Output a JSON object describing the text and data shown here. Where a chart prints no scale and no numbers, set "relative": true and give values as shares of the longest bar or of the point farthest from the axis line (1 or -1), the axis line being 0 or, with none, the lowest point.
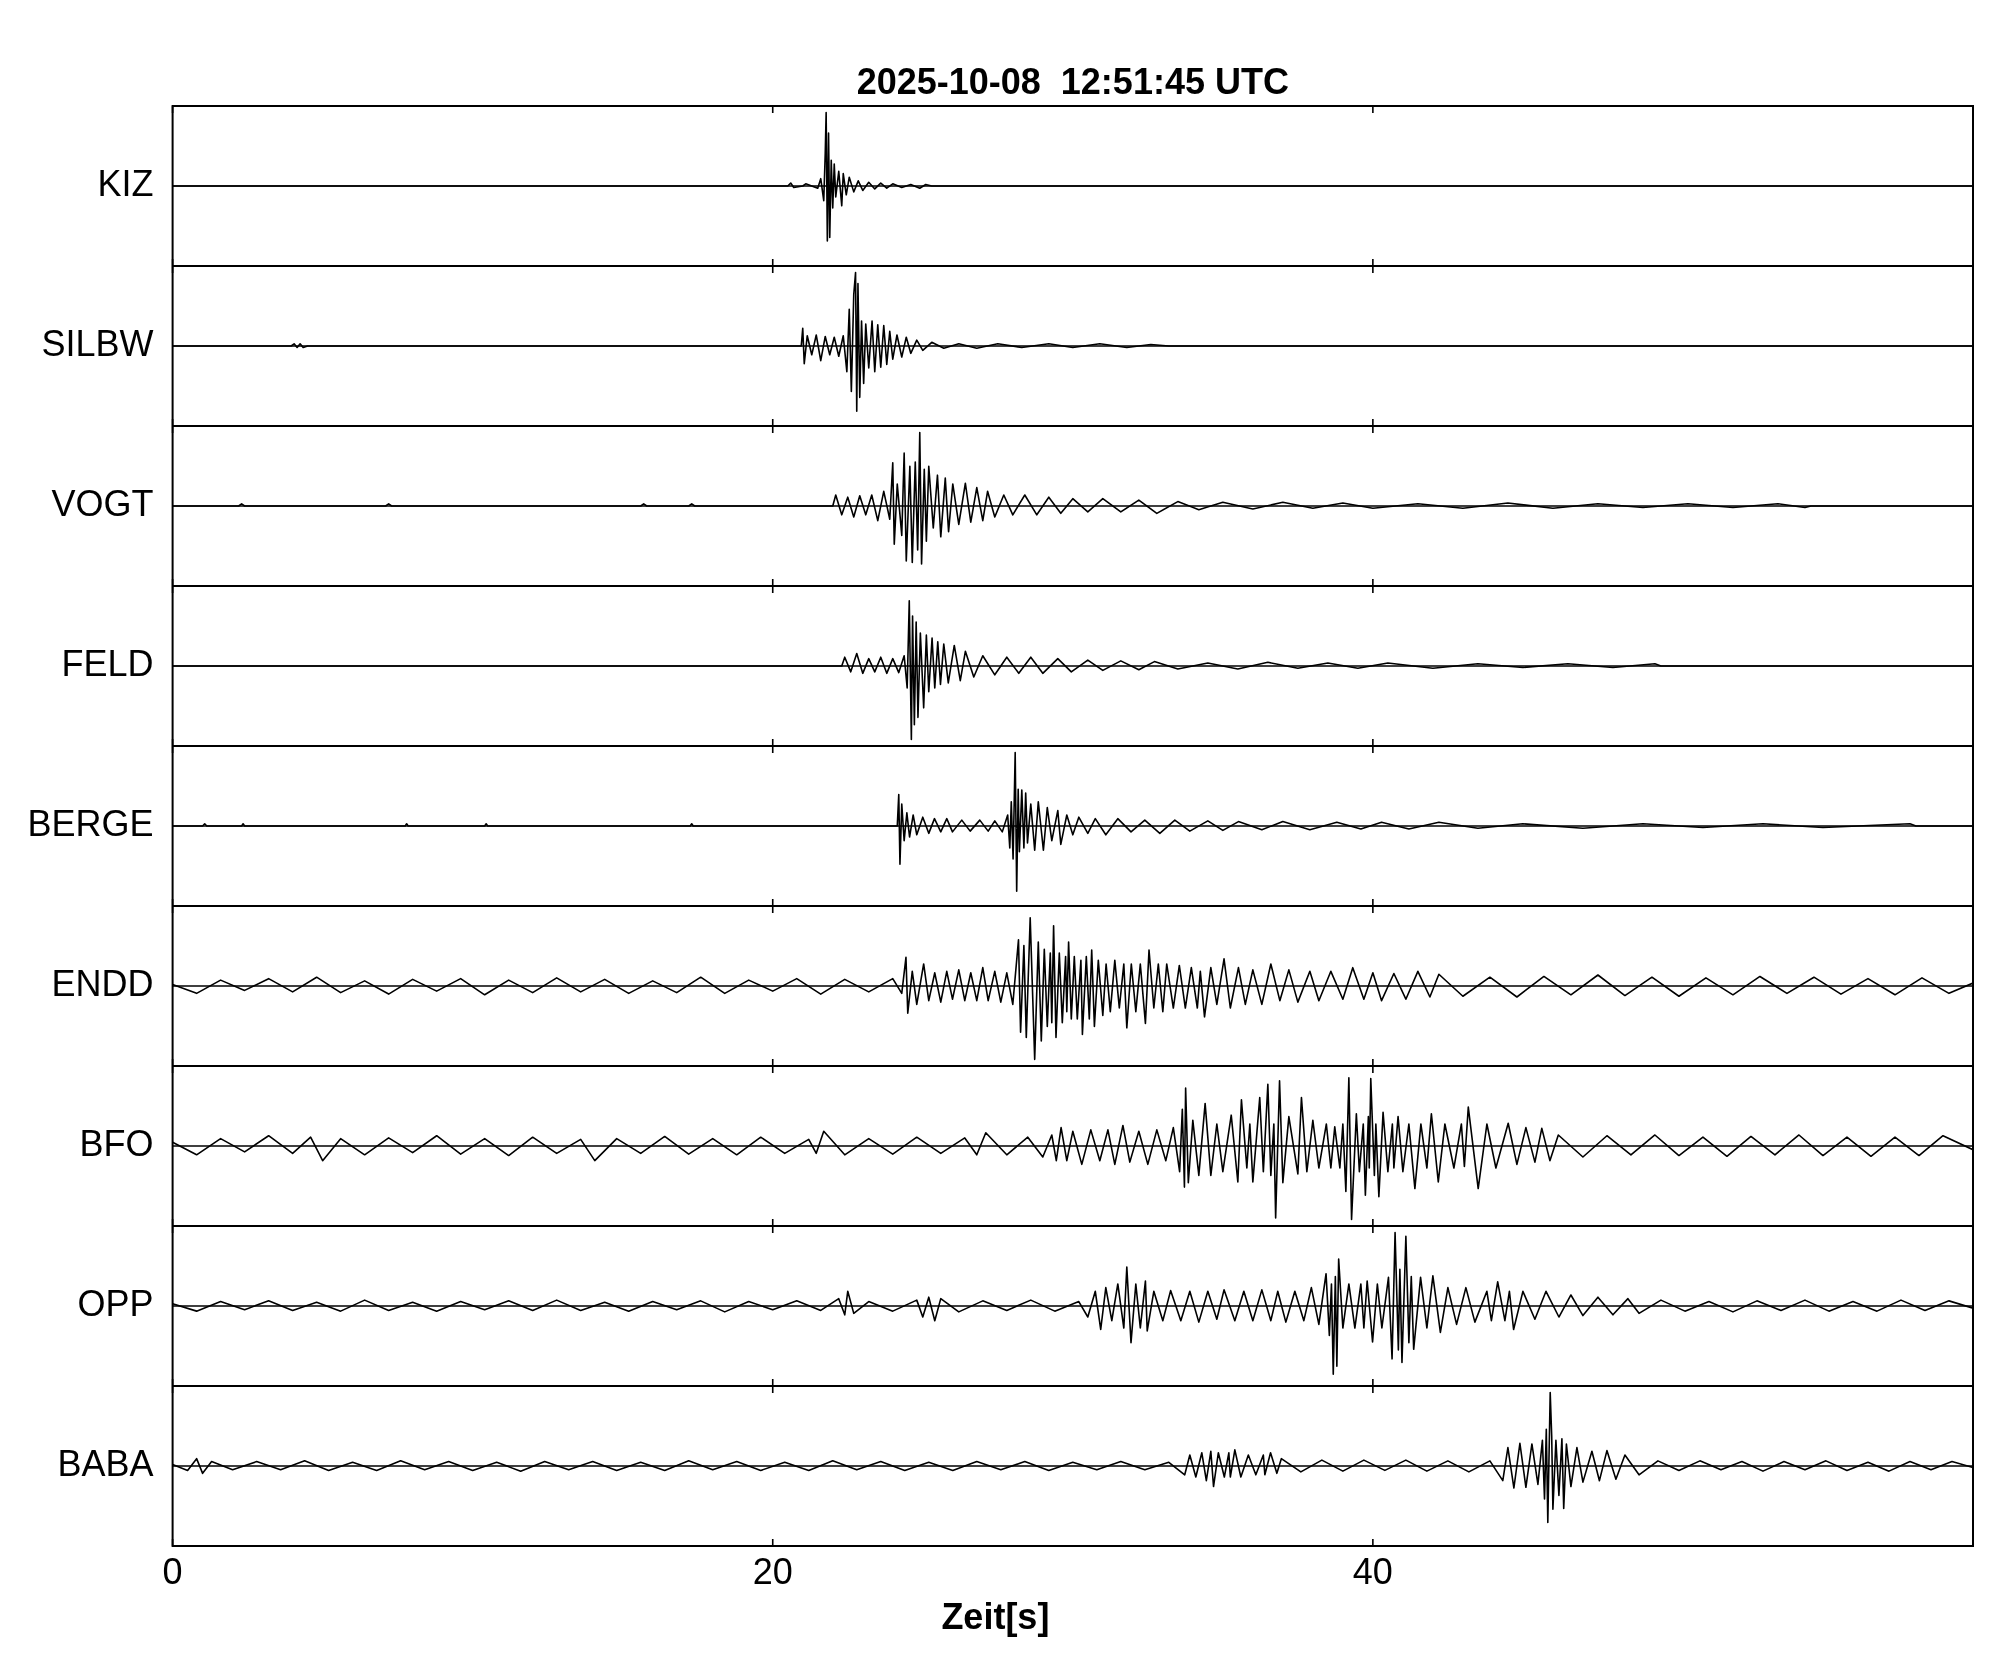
{
  "chart_data": [
    {
      "type": "line",
      "title": "2025-10-08  12:51:45 UTC",
      "ylabel": "KIZ",
      "relative": true,
      "color": "#000000",
      "xlim": [
        0,
        60
      ],
      "xticks": [
        0,
        20,
        40
      ],
      "tick_labels": false,
      "x": [
        0,
        20.5,
        20.6,
        20.7,
        21.0,
        21.1,
        21.5,
        21.6,
        21.7,
        21.75,
        21.78,
        21.82,
        21.86,
        21.9,
        21.95,
        22.0,
        22.05,
        22.1,
        22.2,
        22.3,
        22.35,
        22.45,
        22.55,
        22.7,
        22.85,
        23.0,
        23.2,
        23.4,
        23.6,
        23.8,
        24.0,
        24.3,
        24.6,
        24.9,
        25.1,
        25.3,
        60
      ],
      "values": [
        0,
        0,
        0.04,
        -0.02,
        0,
        0.03,
        -0.03,
        0.1,
        -0.2,
        0.45,
        1.0,
        -0.75,
        0.72,
        -0.7,
        0.35,
        -0.3,
        0.3,
        -0.15,
        0.2,
        -0.27,
        0.17,
        -0.12,
        0.12,
        -0.08,
        0.07,
        -0.06,
        0.05,
        -0.04,
        0.04,
        -0.03,
        0.03,
        -0.02,
        0.02,
        -0.03,
        0.02,
        0,
        0
      ]
    },
    {
      "type": "line",
      "ylabel": "SILBW",
      "relative": true,
      "color": "#000000",
      "xlim": [
        0,
        60
      ],
      "xticks": [
        0,
        20,
        40
      ],
      "tick_labels": false,
      "x": [
        0,
        3.95,
        4.05,
        4.15,
        4.25,
        4.35,
        4.5,
        20.95,
        21.0,
        21.05,
        21.15,
        21.3,
        21.45,
        21.6,
        21.75,
        21.9,
        22.05,
        22.2,
        22.35,
        22.47,
        22.55,
        22.62,
        22.7,
        22.76,
        22.8,
        22.84,
        22.9,
        22.96,
        23.03,
        23.1,
        23.2,
        23.31,
        23.4,
        23.5,
        23.6,
        23.7,
        23.8,
        23.9,
        24.0,
        24.14,
        24.3,
        24.45,
        24.6,
        24.8,
        25.0,
        25.3,
        25.7,
        26.2,
        26.8,
        27.5,
        28.3,
        29.2,
        30.0,
        30.9,
        31.8,
        32.6,
        33.2,
        60
      ],
      "values": [
        0,
        0,
        0.03,
        -0.02,
        0.03,
        -0.02,
        0,
        0,
        0.24,
        -0.24,
        0.14,
        -0.12,
        0.15,
        -0.2,
        0.13,
        -0.12,
        0.12,
        -0.14,
        0.14,
        -0.35,
        0.5,
        -0.62,
        0.7,
        1.0,
        -0.89,
        0.85,
        -0.7,
        0.34,
        -0.51,
        0.3,
        -0.3,
        0.34,
        -0.35,
        0.29,
        -0.29,
        0.28,
        -0.25,
        0.2,
        -0.18,
        0.15,
        -0.15,
        0.12,
        -0.1,
        0.08,
        -0.06,
        0.05,
        -0.03,
        0.03,
        -0.03,
        0.03,
        -0.02,
        0.03,
        -0.02,
        0.03,
        -0.02,
        0.02,
        0,
        0
      ]
    },
    {
      "type": "line",
      "ylabel": "VOGT",
      "relative": true,
      "color": "#000000",
      "xlim": [
        0,
        60
      ],
      "xticks": [
        0,
        20,
        40
      ],
      "tick_labels": false,
      "x": [
        0,
        2.2,
        2.3,
        2.4,
        7.1,
        7.2,
        7.3,
        15.6,
        15.7,
        15.8,
        17.2,
        17.3,
        17.4,
        22.0,
        22.1,
        22.3,
        22.5,
        22.7,
        22.9,
        23.1,
        23.3,
        23.5,
        23.7,
        23.9,
        24.0,
        24.05,
        24.15,
        24.3,
        24.38,
        24.45,
        24.57,
        24.65,
        24.75,
        24.83,
        24.9,
        24.96,
        25.05,
        25.12,
        25.2,
        25.35,
        25.49,
        25.6,
        25.75,
        25.86,
        26.0,
        26.2,
        26.42,
        26.6,
        26.8,
        27.0,
        27.16,
        27.4,
        27.7,
        28.0,
        28.4,
        28.8,
        29.2,
        29.6,
        30.0,
        30.5,
        31.0,
        31.6,
        32.2,
        32.8,
        33.5,
        34.2,
        35.0,
        36.0,
        37.0,
        38.0,
        39.0,
        40.0,
        41.5,
        43.0,
        44.5,
        46.0,
        47.5,
        49.0,
        50.5,
        52.0,
        53.5,
        54.4,
        54.6,
        60
      ],
      "values": [
        0,
        0,
        0.03,
        0,
        0,
        0.03,
        0,
        0,
        0.03,
        0,
        0,
        0.03,
        0,
        0,
        0.15,
        -0.12,
        0.12,
        -0.15,
        0.14,
        -0.12,
        0.15,
        -0.2,
        0.2,
        -0.18,
        0.59,
        -0.52,
        0.3,
        -0.4,
        0.72,
        -0.75,
        0.54,
        -0.77,
        0.6,
        -0.6,
        1.0,
        -0.79,
        0.5,
        -0.48,
        0.54,
        -0.3,
        0.42,
        -0.42,
        0.38,
        -0.35,
        0.3,
        -0.25,
        0.31,
        -0.22,
        0.25,
        -0.2,
        0.2,
        -0.15,
        0.15,
        -0.12,
        0.15,
        -0.12,
        0.12,
        -0.1,
        0.1,
        -0.08,
        0.1,
        -0.08,
        0.08,
        -0.1,
        0.06,
        -0.05,
        0.05,
        -0.04,
        0.05,
        -0.03,
        0.04,
        -0.03,
        0.03,
        -0.03,
        0.04,
        -0.03,
        0.03,
        -0.02,
        0.03,
        -0.02,
        0.03,
        -0.02,
        0,
        0
      ]
    },
    {
      "type": "line",
      "ylabel": "FELD",
      "relative": true,
      "color": "#000000",
      "xlim": [
        0,
        60
      ],
      "xticks": [
        0,
        20,
        40
      ],
      "tick_labels": false,
      "x": [
        0,
        22.3,
        22.4,
        22.6,
        22.8,
        23.0,
        23.2,
        23.4,
        23.6,
        23.8,
        24.0,
        24.2,
        24.38,
        24.48,
        24.55,
        24.62,
        24.66,
        24.72,
        24.78,
        24.84,
        24.92,
        25.03,
        25.12,
        25.2,
        25.31,
        25.4,
        25.5,
        25.59,
        25.7,
        25.85,
        26.05,
        26.25,
        26.42,
        26.7,
        27.0,
        27.4,
        27.8,
        28.2,
        28.6,
        29.0,
        29.5,
        29.95,
        30.5,
        31.0,
        31.6,
        32.2,
        32.72,
        33.5,
        34.5,
        35.5,
        36.5,
        37.5,
        38.5,
        39.5,
        40.5,
        42.0,
        43.5,
        45.0,
        46.5,
        48.0,
        49.4,
        49.6,
        60
      ],
      "values": [
        0,
        0,
        0.12,
        -0.08,
        0.17,
        -0.1,
        0.1,
        -0.08,
        0.12,
        -0.1,
        0.1,
        -0.09,
        0.14,
        -0.3,
        0.89,
        -1.0,
        0.68,
        -0.8,
        0.6,
        -0.7,
        0.45,
        -0.57,
        0.42,
        -0.35,
        0.38,
        -0.3,
        0.33,
        -0.25,
        0.3,
        -0.23,
        0.28,
        -0.2,
        0.2,
        -0.15,
        0.14,
        -0.12,
        0.12,
        -0.1,
        0.12,
        -0.1,
        0.1,
        -0.08,
        0.08,
        -0.06,
        0.07,
        -0.05,
        0.06,
        -0.04,
        0.04,
        -0.04,
        0.05,
        -0.03,
        0.04,
        -0.03,
        0.04,
        -0.03,
        0.03,
        -0.02,
        0.03,
        -0.02,
        0.03,
        0,
        0
      ]
    },
    {
      "type": "line",
      "ylabel": "BERGE",
      "relative": true,
      "color": "#000000",
      "xlim": [
        0,
        60
      ],
      "xticks": [
        0,
        20,
        40
      ],
      "tick_labels": false,
      "x": [
        0,
        1.0,
        1.07,
        1.14,
        2.3,
        2.35,
        2.4,
        7.75,
        7.8,
        7.85,
        10.4,
        10.45,
        10.5,
        17.25,
        17.3,
        17.35,
        24.15,
        24.2,
        24.24,
        24.3,
        24.38,
        24.47,
        24.56,
        24.68,
        24.8,
        25.0,
        25.2,
        25.39,
        25.6,
        25.8,
        25.99,
        26.3,
        26.58,
        26.9,
        27.18,
        27.4,
        27.65,
        27.83,
        27.9,
        27.95,
        28.01,
        28.08,
        28.13,
        28.18,
        28.22,
        28.3,
        28.37,
        28.43,
        28.49,
        28.6,
        28.73,
        28.85,
        29.02,
        29.15,
        29.3,
        29.5,
        29.6,
        29.8,
        30.0,
        30.2,
        30.5,
        30.75,
        31.1,
        31.5,
        31.94,
        32.4,
        32.9,
        33.4,
        33.9,
        34.5,
        35.0,
        35.52,
        36.3,
        37.0,
        37.9,
        38.8,
        39.6,
        40.29,
        41.2,
        42.2,
        43.5,
        45.0,
        47.0,
        49.0,
        51.0,
        53.0,
        55.0,
        57.9,
        58.1,
        60
      ],
      "values": [
        0,
        0,
        0.03,
        0,
        0,
        0.03,
        0,
        0,
        0.03,
        0,
        0,
        0.03,
        0,
        0,
        0.03,
        0,
        0,
        0.43,
        -0.52,
        0.3,
        -0.2,
        0.18,
        -0.15,
        0.15,
        -0.12,
        0.12,
        -0.1,
        0.1,
        -0.08,
        0.1,
        -0.08,
        0.08,
        -0.07,
        0.08,
        -0.07,
        0.07,
        -0.08,
        0.15,
        -0.3,
        0.33,
        -0.45,
        1.0,
        -0.89,
        0.5,
        -0.35,
        0.49,
        -0.3,
        0.45,
        -0.23,
        0.3,
        -0.33,
        0.33,
        -0.33,
        0.25,
        -0.2,
        0.21,
        -0.25,
        0.15,
        -0.12,
        0.12,
        -0.1,
        0.1,
        -0.12,
        0.1,
        -0.08,
        0.08,
        -0.1,
        0.08,
        -0.07,
        0.07,
        -0.06,
        0.06,
        -0.05,
        0.06,
        -0.05,
        0.05,
        -0.04,
        0.05,
        -0.04,
        0.05,
        -0.03,
        0.03,
        -0.03,
        0.03,
        -0.02,
        0.03,
        -0.02,
        0.03,
        0,
        0
      ]
    },
    {
      "type": "line",
      "ylabel": "ENDD",
      "relative": true,
      "color": "#000000",
      "xlim": [
        0,
        60
      ],
      "xticks": [
        0,
        20,
        40
      ],
      "tick_labels": false,
      "x": [
        0,
        0.8,
        1.6,
        2.4,
        3.2,
        4.0,
        4.8,
        5.6,
        6.4,
        7.2,
        8.0,
        8.8,
        9.6,
        10.4,
        11.2,
        12.0,
        12.8,
        13.6,
        14.4,
        15.2,
        16.0,
        16.8,
        17.6,
        18.4,
        19.2,
        20.0,
        20.8,
        21.6,
        22.4,
        23.2,
        24.0,
        24.3,
        24.44,
        24.5,
        24.65,
        24.8,
        25.03,
        25.2,
        25.4,
        25.6,
        25.8,
        25.99,
        26.2,
        26.4,
        26.6,
        26.8,
        27.0,
        27.18,
        27.4,
        27.6,
        27.8,
        28.0,
        28.19,
        28.26,
        28.37,
        28.45,
        28.58,
        28.73,
        28.85,
        28.95,
        29.05,
        29.15,
        29.25,
        29.3,
        29.36,
        29.44,
        29.55,
        29.65,
        29.76,
        29.8,
        29.86,
        29.95,
        30.05,
        30.15,
        30.27,
        30.32,
        30.45,
        30.55,
        30.63,
        30.72,
        30.85,
        31.0,
        31.11,
        31.25,
        31.4,
        31.55,
        31.7,
        31.8,
        31.95,
        32.1,
        32.25,
        32.42,
        32.54,
        32.7,
        32.85,
        33.0,
        33.13,
        33.35,
        33.55,
        33.75,
        33.95,
        34.15,
        34.25,
        34.39,
        34.6,
        34.8,
        35.04,
        35.25,
        35.52,
        35.75,
        36.0,
        36.3,
        36.6,
        36.9,
        37.2,
        37.5,
        37.9,
        38.2,
        38.6,
        39.0,
        39.33,
        39.7,
        40.0,
        40.29,
        40.7,
        41.1,
        41.5,
        41.9,
        42.2,
        43.0,
        43.9,
        44.8,
        45.7,
        46.6,
        47.5,
        48.4,
        49.3,
        50.2,
        51.1,
        52.0,
        52.9,
        53.8,
        54.7,
        55.6,
        56.5,
        57.4,
        58.3,
        59.2,
        60
      ],
      "values": [
        0.02,
        -0.1,
        0.08,
        -0.06,
        0.1,
        -0.08,
        0.12,
        -0.09,
        0.07,
        -0.11,
        0.09,
        -0.07,
        0.1,
        -0.12,
        0.08,
        -0.09,
        0.11,
        -0.08,
        0.09,
        -0.1,
        0.07,
        -0.09,
        0.12,
        -0.1,
        0.08,
        -0.07,
        0.1,
        -0.11,
        0.09,
        -0.08,
        0.1,
        -0.1,
        0.39,
        -0.37,
        0.2,
        -0.25,
        0.3,
        -0.2,
        0.18,
        -0.22,
        0.2,
        -0.18,
        0.22,
        -0.2,
        0.18,
        -0.2,
        0.25,
        -0.2,
        0.2,
        -0.22,
        0.18,
        -0.25,
        0.63,
        -0.63,
        0.55,
        -0.7,
        0.93,
        -1.0,
        0.6,
        -0.75,
        0.5,
        -0.55,
        0.45,
        -0.5,
        0.82,
        -0.7,
        0.45,
        -0.5,
        0.4,
        -0.35,
        0.6,
        -0.45,
        0.4,
        -0.45,
        0.35,
        -0.66,
        0.4,
        -0.45,
        0.49,
        -0.55,
        0.35,
        -0.4,
        0.3,
        -0.35,
        0.35,
        -0.3,
        0.3,
        -0.57,
        0.3,
        -0.35,
        0.3,
        -0.51,
        0.49,
        -0.3,
        0.3,
        -0.35,
        0.3,
        -0.3,
        0.28,
        -0.3,
        0.25,
        -0.3,
        0.2,
        -0.42,
        0.25,
        -0.25,
        0.37,
        -0.3,
        0.25,
        -0.25,
        0.22,
        -0.25,
        0.3,
        -0.2,
        0.22,
        -0.22,
        0.2,
        -0.2,
        0.2,
        -0.18,
        0.25,
        -0.18,
        0.18,
        -0.2,
        0.17,
        -0.18,
        0.2,
        -0.15,
        0.16,
        -0.14,
        0.12,
        -0.15,
        0.13,
        -0.12,
        0.15,
        -0.13,
        0.12,
        -0.14,
        0.11,
        -0.12,
        0.13,
        -0.1,
        0.12,
        -0.11,
        0.1,
        -0.12,
        0.11,
        -0.1,
        0.04
      ]
    },
    {
      "type": "line",
      "ylabel": "BFO",
      "relative": true,
      "color": "#000000",
      "xlim": [
        0,
        60
      ],
      "xticks": [
        0,
        20,
        40
      ],
      "tick_labels": false,
      "x": [
        0,
        0.8,
        1.6,
        2.4,
        3.2,
        4.0,
        4.6,
        5.0,
        5.6,
        6.4,
        7.2,
        8.0,
        8.8,
        9.6,
        10.4,
        11.2,
        12.0,
        12.8,
        13.6,
        14.07,
        14.8,
        15.6,
        16.4,
        17.2,
        18.0,
        18.8,
        19.6,
        20.4,
        21.2,
        21.45,
        21.7,
        22.4,
        23.2,
        24.0,
        24.8,
        25.6,
        26.4,
        26.8,
        27.1,
        27.8,
        28.5,
        29.0,
        29.3,
        29.45,
        29.61,
        29.8,
        30.0,
        30.3,
        30.6,
        30.9,
        31.17,
        31.4,
        31.67,
        31.9,
        32.2,
        32.5,
        32.8,
        33.1,
        33.35,
        33.56,
        33.65,
        33.72,
        33.76,
        33.85,
        34.0,
        34.2,
        34.41,
        34.6,
        34.8,
        35.0,
        35.28,
        35.5,
        35.62,
        35.8,
        35.9,
        36.0,
        36.23,
        36.35,
        36.5,
        36.6,
        36.7,
        36.76,
        36.89,
        37.0,
        37.2,
        37.5,
        37.62,
        37.8,
        38.0,
        38.2,
        38.45,
        38.6,
        38.73,
        38.9,
        39.0,
        39.1,
        39.2,
        39.29,
        39.45,
        39.55,
        39.68,
        39.75,
        39.85,
        39.88,
        39.93,
        40.05,
        40.1,
        40.2,
        40.34,
        40.5,
        40.65,
        40.7,
        40.84,
        41.0,
        41.2,
        41.4,
        41.6,
        41.8,
        41.95,
        42.18,
        42.4,
        42.7,
        42.95,
        43.05,
        43.18,
        43.51,
        43.8,
        44.1,
        44.51,
        44.8,
        45.1,
        45.4,
        45.63,
        45.9,
        46.18,
        47.0,
        47.8,
        48.6,
        49.4,
        50.2,
        51.0,
        51.8,
        52.6,
        53.4,
        54.2,
        55.0,
        55.8,
        56.6,
        57.4,
        58.2,
        59.0,
        60
      ],
      "values": [
        0.05,
        -0.12,
        0.1,
        -0.08,
        0.14,
        -0.1,
        0.12,
        -0.2,
        0.1,
        -0.12,
        0.11,
        -0.09,
        0.14,
        -0.11,
        0.1,
        -0.13,
        0.12,
        -0.1,
        0.09,
        -0.2,
        0.1,
        -0.1,
        0.13,
        -0.11,
        0.1,
        -0.12,
        0.12,
        -0.1,
        0.09,
        -0.1,
        0.2,
        -0.12,
        0.1,
        -0.11,
        0.12,
        -0.1,
        0.11,
        -0.12,
        0.18,
        -0.12,
        0.12,
        -0.15,
        0.15,
        -0.2,
        0.25,
        -0.2,
        0.2,
        -0.25,
        0.22,
        -0.2,
        0.22,
        -0.25,
        0.28,
        -0.22,
        0.2,
        -0.25,
        0.22,
        -0.2,
        0.25,
        -0.35,
        0.5,
        -0.56,
        0.79,
        -0.5,
        0.35,
        -0.4,
        0.58,
        -0.4,
        0.3,
        -0.35,
        0.42,
        -0.49,
        0.63,
        -0.3,
        0.3,
        -0.49,
        0.66,
        -0.35,
        0.84,
        -0.4,
        0.3,
        -0.98,
        0.89,
        -0.5,
        0.4,
        -0.38,
        0.66,
        -0.35,
        0.35,
        -0.3,
        0.3,
        -0.3,
        0.26,
        -0.3,
        0.3,
        -0.62,
        0.93,
        -1.0,
        0.44,
        -0.35,
        0.3,
        -0.67,
        0.4,
        -0.3,
        0.92,
        -0.4,
        0.3,
        -0.69,
        0.46,
        -0.35,
        0.3,
        -0.3,
        0.4,
        -0.35,
        0.3,
        -0.58,
        0.3,
        -0.3,
        0.44,
        -0.49,
        0.3,
        -0.3,
        0.3,
        -0.28,
        0.53,
        -0.58,
        0.3,
        -0.3,
        0.31,
        -0.25,
        0.25,
        -0.22,
        0.24,
        -0.2,
        0.15,
        -0.15,
        0.14,
        -0.12,
        0.15,
        -0.13,
        0.12,
        -0.14,
        0.13,
        -0.12,
        0.15,
        -0.13,
        0.12,
        -0.14,
        0.12,
        -0.13,
        0.14,
        -0.05
      ]
    },
    {
      "type": "line",
      "ylabel": "OPP",
      "relative": true,
      "color": "#000000",
      "xlim": [
        0,
        60
      ],
      "xticks": [
        0,
        20,
        40
      ],
      "tick_labels": false,
      "x": [
        0,
        0.8,
        1.6,
        2.4,
        3.2,
        4.0,
        4.8,
        5.6,
        6.4,
        7.2,
        8.0,
        8.8,
        9.6,
        10.4,
        11.2,
        12.0,
        12.8,
        13.6,
        14.4,
        15.2,
        16.0,
        16.8,
        17.6,
        18.4,
        19.2,
        20.0,
        20.8,
        21.6,
        22.2,
        22.4,
        22.5,
        22.7,
        23.2,
        24.0,
        24.8,
        25.0,
        25.2,
        25.4,
        25.6,
        26.2,
        27.0,
        27.8,
        28.6,
        29.4,
        30.2,
        30.5,
        30.75,
        30.93,
        31.1,
        31.3,
        31.5,
        31.7,
        31.8,
        31.94,
        32.1,
        32.25,
        32.42,
        32.48,
        32.7,
        33.0,
        33.26,
        33.6,
        33.9,
        34.2,
        34.5,
        34.8,
        35.04,
        35.4,
        35.7,
        36.0,
        36.3,
        36.6,
        36.83,
        37.1,
        37.4,
        37.7,
        37.95,
        38.2,
        38.44,
        38.55,
        38.62,
        38.68,
        38.75,
        38.8,
        38.86,
        39.0,
        39.2,
        39.4,
        39.6,
        39.7,
        39.81,
        39.99,
        40.15,
        40.3,
        40.52,
        40.64,
        40.74,
        40.85,
        40.9,
        40.97,
        41.1,
        41.2,
        41.28,
        41.36,
        41.59,
        41.8,
        42.0,
        42.25,
        42.5,
        42.79,
        43.1,
        43.4,
        43.8,
        43.95,
        44.16,
        44.4,
        44.55,
        44.69,
        45.0,
        45.4,
        45.77,
        46.2,
        46.6,
        47.0,
        47.5,
        48.0,
        48.5,
        48.87,
        49.6,
        50.4,
        51.2,
        52.0,
        52.8,
        53.6,
        54.4,
        55.2,
        56.0,
        56.8,
        57.6,
        58.4,
        59.2,
        60
      ],
      "values": [
        0.03,
        -0.07,
        0.06,
        -0.05,
        0.07,
        -0.06,
        0.05,
        -0.07,
        0.08,
        -0.06,
        0.05,
        -0.07,
        0.06,
        -0.05,
        0.07,
        -0.06,
        0.08,
        -0.06,
        0.05,
        -0.07,
        0.06,
        -0.05,
        0.07,
        -0.08,
        0.06,
        -0.05,
        0.07,
        -0.06,
        0.1,
        -0.12,
        0.2,
        -0.1,
        0.06,
        -0.07,
        0.08,
        -0.15,
        0.12,
        -0.2,
        0.1,
        -0.08,
        0.07,
        -0.06,
        0.08,
        -0.07,
        0.06,
        -0.15,
        0.2,
        -0.32,
        0.25,
        -0.2,
        0.3,
        -0.3,
        0.53,
        -0.5,
        0.3,
        -0.3,
        0.34,
        -0.34,
        0.2,
        -0.2,
        0.21,
        -0.2,
        0.2,
        -0.22,
        0.2,
        -0.18,
        0.22,
        -0.2,
        0.2,
        -0.2,
        0.22,
        -0.2,
        0.2,
        -0.22,
        0.2,
        -0.2,
        0.25,
        -0.25,
        0.44,
        -0.4,
        0.3,
        -0.93,
        0.4,
        -0.82,
        0.64,
        -0.3,
        0.3,
        -0.3,
        0.3,
        -0.3,
        0.34,
        -0.49,
        0.3,
        -0.3,
        0.39,
        -0.72,
        1.0,
        -0.6,
        0.5,
        -0.77,
        0.95,
        -0.5,
        0.4,
        -0.59,
        0.39,
        -0.3,
        0.41,
        -0.36,
        0.25,
        -0.25,
        0.25,
        -0.22,
        0.2,
        -0.2,
        0.33,
        -0.2,
        0.2,
        -0.32,
        0.2,
        -0.18,
        0.2,
        -0.15,
        0.15,
        -0.13,
        0.12,
        -0.12,
        0.1,
        -0.1,
        0.08,
        -0.07,
        0.06,
        -0.08,
        0.07,
        -0.06,
        0.08,
        -0.07,
        0.06,
        -0.07,
        0.08,
        -0.06,
        0.07,
        -0.03
      ]
    },
    {
      "type": "line",
      "ylabel": "BABA",
      "xlabel": "Zeit[s]",
      "relative": true,
      "color": "#000000",
      "xlim": [
        0,
        60
      ],
      "xticks": [
        0,
        20,
        40
      ],
      "tick_labels": "x",
      "x": [
        0,
        0.5,
        0.8,
        1.0,
        1.3,
        2.0,
        2.8,
        3.6,
        4.4,
        5.2,
        6.0,
        6.8,
        7.6,
        8.4,
        9.2,
        10.0,
        10.8,
        11.6,
        12.4,
        13.2,
        14.0,
        14.8,
        15.6,
        16.4,
        17.2,
        18.0,
        18.8,
        19.6,
        20.4,
        21.2,
        22.0,
        22.8,
        23.6,
        24.4,
        25.2,
        26.0,
        26.8,
        27.6,
        28.4,
        29.2,
        30.0,
        30.8,
        31.6,
        32.4,
        33.2,
        33.73,
        33.9,
        34.1,
        34.3,
        34.45,
        34.6,
        34.69,
        34.85,
        35.05,
        35.2,
        35.25,
        35.4,
        35.6,
        35.85,
        36.1,
        36.35,
        36.4,
        36.59,
        36.8,
        36.95,
        37.6,
        38.3,
        39.0,
        39.7,
        40.4,
        41.1,
        41.8,
        42.5,
        43.2,
        43.9,
        44.33,
        44.5,
        44.7,
        44.9,
        45.1,
        45.3,
        45.5,
        45.65,
        45.72,
        45.78,
        45.83,
        45.91,
        45.96,
        46.0,
        46.1,
        46.2,
        46.3,
        46.36,
        46.45,
        46.6,
        46.8,
        47.0,
        47.3,
        47.55,
        47.8,
        48.1,
        48.4,
        48.87,
        49.5,
        50.2,
        50.9,
        51.6,
        52.3,
        53.0,
        53.7,
        54.4,
        55.1,
        55.8,
        56.5,
        57.2,
        57.9,
        58.6,
        59.3,
        60
      ],
      "values": [
        0.02,
        -0.06,
        0.1,
        -0.1,
        0.06,
        -0.05,
        0.06,
        -0.05,
        0.07,
        -0.06,
        0.05,
        -0.06,
        0.07,
        -0.05,
        0.06,
        -0.06,
        0.05,
        -0.07,
        0.06,
        -0.05,
        0.06,
        -0.06,
        0.05,
        -0.06,
        0.07,
        -0.05,
        0.06,
        -0.06,
        0.05,
        -0.06,
        0.07,
        -0.05,
        0.06,
        -0.06,
        0.05,
        -0.06,
        0.06,
        -0.05,
        0.06,
        -0.06,
        0.05,
        -0.05,
        0.06,
        -0.05,
        0.05,
        -0.12,
        0.15,
        -0.15,
        0.18,
        -0.2,
        0.2,
        -0.28,
        0.18,
        -0.15,
        0.18,
        -0.15,
        0.22,
        -0.15,
        0.15,
        -0.12,
        0.15,
        -0.12,
        0.18,
        -0.1,
        0.1,
        -0.08,
        0.08,
        -0.07,
        0.08,
        -0.06,
        0.08,
        -0.07,
        0.07,
        -0.08,
        0.07,
        -0.2,
        0.25,
        -0.3,
        0.31,
        -0.29,
        0.3,
        -0.25,
        0.35,
        -0.45,
        0.5,
        -0.77,
        1.0,
        0.4,
        -0.59,
        0.35,
        -0.4,
        0.37,
        -0.58,
        0.3,
        -0.28,
        0.25,
        -0.22,
        0.2,
        -0.2,
        0.21,
        -0.18,
        0.15,
        -0.12,
        0.07,
        -0.06,
        0.07,
        -0.05,
        0.06,
        -0.07,
        0.06,
        -0.05,
        0.07,
        -0.06,
        0.05,
        -0.07,
        0.06,
        -0.05,
        0.06,
        -0.02
      ]
    }
  ]
}
